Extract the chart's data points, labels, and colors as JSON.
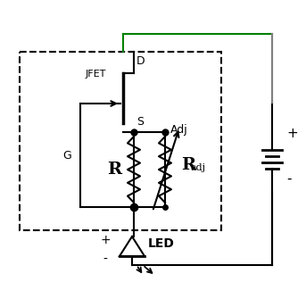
{
  "background": "#ffffff",
  "line_color": "#000000",
  "green_line_color": "#008000",
  "gray_line_color": "#808080",
  "jfet_label": "JFET",
  "g_label": "G",
  "d_label": "D",
  "s_label": "S",
  "adj_label": "Adj",
  "r_label": "R",
  "radj_label_r": "R",
  "radj_label_adj": "adj",
  "led_label": "LED",
  "bat_plus": "+",
  "bat_minus": "-",
  "led_plus": "+",
  "led_minus": "-"
}
